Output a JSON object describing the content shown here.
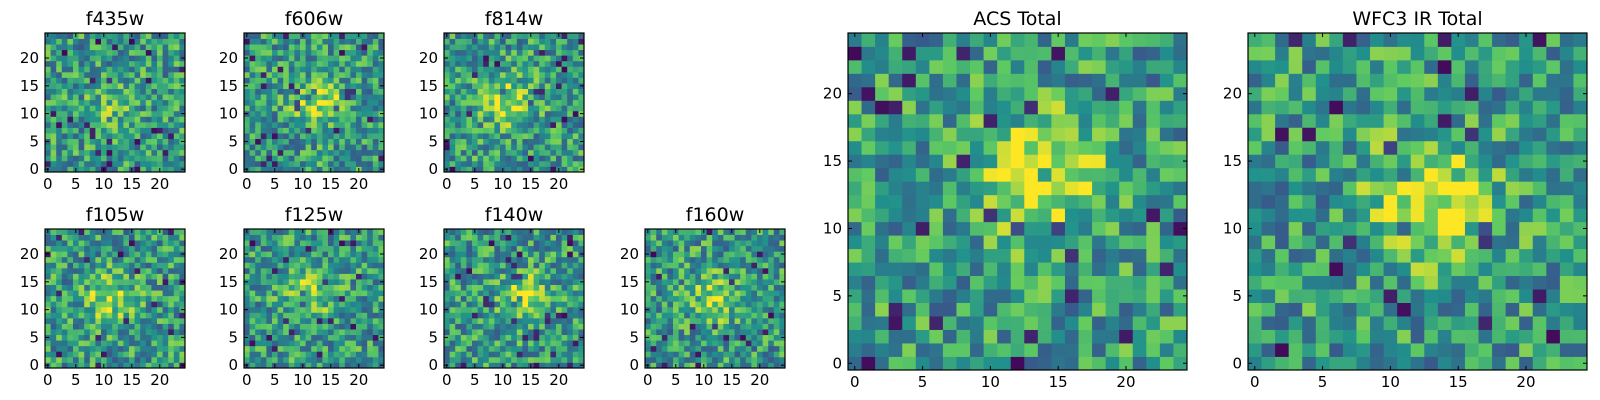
{
  "figure": {
    "colormap": [
      "#440154",
      "#3b528b",
      "#21918c",
      "#5ec962",
      "#fde725"
    ]
  },
  "chart_data": [
    {
      "type": "heatmap",
      "title": "f435w",
      "size": 25,
      "seed": 11,
      "peak": [
        11,
        12
      ],
      "peak_strength": 0.15,
      "xticks": [
        0,
        5,
        10,
        15,
        20
      ],
      "yticks": [
        0,
        5,
        10,
        15,
        20
      ],
      "xlim": [
        0,
        25
      ],
      "ylim": [
        0,
        25
      ]
    },
    {
      "type": "heatmap",
      "title": "f606w",
      "size": 25,
      "seed": 23,
      "peak": [
        13,
        12
      ],
      "peak_strength": 0.35,
      "xticks": [
        0,
        5,
        10,
        15,
        20
      ],
      "yticks": [
        0,
        5,
        10,
        15,
        20
      ],
      "xlim": [
        0,
        25
      ],
      "ylim": [
        0,
        25
      ]
    },
    {
      "type": "heatmap",
      "title": "f814w",
      "size": 25,
      "seed": 37,
      "peak": [
        11,
        12
      ],
      "peak_strength": 0.35,
      "xticks": [
        0,
        5,
        10,
        15,
        20
      ],
      "yticks": [
        0,
        5,
        10,
        15,
        20
      ],
      "xlim": [
        0,
        25
      ],
      "ylim": [
        0,
        25
      ]
    },
    {
      "type": "heatmap",
      "title": "f105w",
      "size": 25,
      "seed": 41,
      "peak": [
        11,
        12
      ],
      "peak_strength": 0.3,
      "xticks": [
        0,
        5,
        10,
        15,
        20
      ],
      "yticks": [
        0,
        5,
        10,
        15,
        20
      ],
      "xlim": [
        0,
        25
      ],
      "ylim": [
        0,
        25
      ]
    },
    {
      "type": "heatmap",
      "title": "f125w",
      "size": 25,
      "seed": 53,
      "peak": [
        11,
        13
      ],
      "peak_strength": 0.3,
      "xticks": [
        0,
        5,
        10,
        15,
        20
      ],
      "yticks": [
        0,
        5,
        10,
        15,
        20
      ],
      "xlim": [
        0,
        25
      ],
      "ylim": [
        0,
        25
      ]
    },
    {
      "type": "heatmap",
      "title": "f140w",
      "size": 25,
      "seed": 67,
      "peak": [
        14,
        12
      ],
      "peak_strength": 0.35,
      "xticks": [
        0,
        5,
        10,
        15,
        20
      ],
      "yticks": [
        0,
        5,
        10,
        15,
        20
      ],
      "xlim": [
        0,
        25
      ],
      "ylim": [
        0,
        25
      ]
    },
    {
      "type": "heatmap",
      "title": "f160w",
      "size": 25,
      "seed": 79,
      "peak": [
        12,
        12
      ],
      "peak_strength": 0.3,
      "xticks": [
        0,
        5,
        10,
        15,
        20
      ],
      "yticks": [
        0,
        5,
        10,
        15,
        20
      ],
      "xlim": [
        0,
        25
      ],
      "ylim": [
        0,
        25
      ]
    },
    {
      "type": "heatmap",
      "title": "ACS Total",
      "size": 25,
      "seed": 97,
      "peak": [
        14,
        14
      ],
      "peak_strength": 0.45,
      "xticks": [
        0,
        5,
        10,
        15,
        20
      ],
      "yticks": [
        0,
        5,
        10,
        15,
        20
      ],
      "xlim": [
        0,
        25
      ],
      "ylim": [
        0,
        25
      ]
    },
    {
      "type": "heatmap",
      "title": "WFC3 IR Total",
      "size": 25,
      "seed": 131,
      "peak": [
        13,
        12
      ],
      "peak_strength": 0.45,
      "xticks": [
        0,
        5,
        10,
        15,
        20
      ],
      "yticks": [
        0,
        5,
        10,
        15,
        20
      ],
      "xlim": [
        0,
        25
      ],
      "ylim": [
        0,
        25
      ]
    }
  ]
}
